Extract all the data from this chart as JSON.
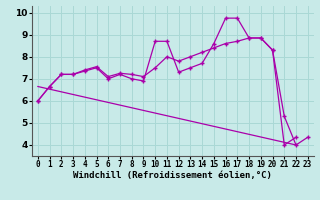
{
  "xlabel": "Windchill (Refroidissement éolien,°C)",
  "bg_color": "#c8eae8",
  "grid_color": "#aad8d5",
  "line_color": "#aa00aa",
  "xlim": [
    -0.5,
    23.5
  ],
  "ylim": [
    3.5,
    10.3
  ],
  "xticks": [
    0,
    1,
    2,
    3,
    4,
    5,
    6,
    7,
    8,
    9,
    10,
    11,
    12,
    13,
    14,
    15,
    16,
    17,
    18,
    19,
    20,
    21,
    22,
    23
  ],
  "yticks": [
    4,
    5,
    6,
    7,
    8,
    9,
    10
  ],
  "line1_x": [
    0,
    1,
    2,
    3,
    4,
    5,
    6,
    7,
    8,
    9,
    10,
    11,
    12,
    13,
    14,
    15,
    16,
    17,
    18,
    19,
    20,
    21,
    22,
    23
  ],
  "line1_y": [
    6.0,
    6.65,
    7.2,
    7.2,
    7.35,
    7.5,
    7.0,
    7.2,
    7.0,
    6.9,
    8.7,
    8.7,
    7.3,
    7.5,
    7.7,
    8.6,
    9.75,
    9.75,
    8.85,
    8.85,
    8.3,
    5.3,
    4.0,
    4.35
  ],
  "line2_x": [
    0,
    1,
    2,
    3,
    4,
    5,
    6,
    7,
    8,
    9,
    10,
    11,
    12,
    13,
    14,
    15,
    16,
    17,
    18,
    19,
    20,
    21,
    22,
    23
  ],
  "line2_y": [
    6.0,
    6.65,
    7.2,
    7.2,
    7.4,
    7.55,
    7.1,
    7.25,
    7.2,
    7.1,
    7.5,
    8.0,
    7.8,
    8.0,
    8.2,
    8.4,
    8.6,
    8.7,
    8.85,
    8.85,
    8.3,
    4.0,
    4.35,
    null
  ],
  "line3_x": [
    0,
    22
  ],
  "line3_y": [
    6.65,
    4.0
  ]
}
